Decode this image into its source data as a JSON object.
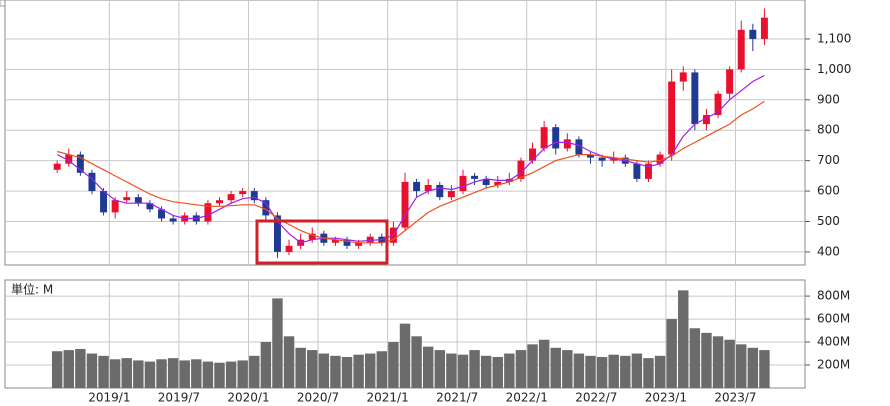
{
  "chart_data": [
    {
      "type": "candlestick",
      "x": [
        "2018/8",
        "2018/9",
        "2018/10",
        "2018/11",
        "2018/12",
        "2019/1",
        "2019/2",
        "2019/3",
        "2019/4",
        "2019/5",
        "2019/6",
        "2019/7",
        "2019/8",
        "2019/9",
        "2019/10",
        "2019/11",
        "2019/12",
        "2020/1",
        "2020/2",
        "2020/3",
        "2020/4",
        "2020/5",
        "2020/6",
        "2020/7",
        "2020/8",
        "2020/9",
        "2020/10",
        "2020/11",
        "2020/12",
        "2021/1",
        "2021/2",
        "2021/3",
        "2021/4",
        "2021/5",
        "2021/6",
        "2021/7",
        "2021/8",
        "2021/9",
        "2021/10",
        "2021/11",
        "2021/12",
        "2022/1",
        "2022/2",
        "2022/3",
        "2022/4",
        "2022/5",
        "2022/6",
        "2022/7",
        "2022/8",
        "2022/9",
        "2022/10",
        "2022/11",
        "2022/12",
        "2023/1",
        "2023/2",
        "2023/3",
        "2023/4",
        "2023/5",
        "2023/6",
        "2023/7",
        "2023/8",
        "2023/9"
      ],
      "open": [
        670,
        690,
        720,
        660,
        600,
        530,
        570,
        580,
        560,
        540,
        510,
        500,
        520,
        500,
        560,
        570,
        590,
        600,
        570,
        520,
        400,
        420,
        440,
        460,
        430,
        440,
        420,
        430,
        450,
        430,
        480,
        630,
        600,
        620,
        580,
        600,
        650,
        640,
        620,
        630,
        640,
        700,
        740,
        810,
        740,
        770,
        720,
        710,
        700,
        710,
        690,
        640,
        690,
        720,
        960,
        990,
        820,
        850,
        920,
        1000,
        1130,
        1100
      ],
      "high": [
        700,
        740,
        730,
        670,
        610,
        580,
        600,
        590,
        570,
        550,
        520,
        530,
        530,
        570,
        580,
        600,
        610,
        610,
        580,
        530,
        440,
        460,
        480,
        470,
        450,
        450,
        440,
        460,
        460,
        500,
        660,
        640,
        640,
        630,
        620,
        670,
        660,
        650,
        650,
        660,
        710,
        760,
        830,
        820,
        790,
        780,
        730,
        720,
        730,
        720,
        700,
        700,
        730,
        1000,
        1010,
        1000,
        870,
        930,
        1010,
        1160,
        1150,
        1200
      ],
      "low": [
        660,
        680,
        650,
        590,
        520,
        510,
        560,
        550,
        530,
        500,
        490,
        490,
        490,
        490,
        550,
        560,
        580,
        560,
        500,
        380,
        390,
        410,
        430,
        420,
        420,
        410,
        410,
        420,
        420,
        420,
        470,
        580,
        590,
        570,
        570,
        590,
        620,
        610,
        610,
        620,
        630,
        690,
        730,
        720,
        730,
        710,
        690,
        680,
        690,
        680,
        630,
        630,
        680,
        700,
        930,
        800,
        800,
        840,
        900,
        990,
        1060,
        1080
      ],
      "close": [
        690,
        720,
        660,
        600,
        530,
        570,
        580,
        560,
        540,
        510,
        500,
        520,
        500,
        560,
        570,
        590,
        600,
        570,
        520,
        400,
        420,
        440,
        460,
        430,
        440,
        420,
        430,
        450,
        430,
        480,
        630,
        600,
        620,
        580,
        600,
        650,
        640,
        620,
        630,
        640,
        700,
        740,
        810,
        740,
        770,
        720,
        710,
        700,
        710,
        690,
        640,
        690,
        720,
        960,
        990,
        820,
        850,
        920,
        1000,
        1130,
        1100,
        1170
      ],
      "up_color": "#e8102e",
      "down_color": "#1f3a93",
      "lines": [
        {
          "color": "#a020f0",
          "values": [
            720,
            700,
            670,
            640,
            600,
            570,
            560,
            560,
            560,
            540,
            520,
            510,
            510,
            520,
            540,
            560,
            575,
            580,
            560,
            500,
            460,
            430,
            440,
            445,
            445,
            440,
            435,
            438,
            440,
            455,
            520,
            580,
            600,
            610,
            605,
            615,
            630,
            640,
            635,
            635,
            660,
            700,
            740,
            760,
            760,
            750,
            730,
            715,
            705,
            700,
            690,
            680,
            690,
            720,
            780,
            820,
            840,
            860,
            900,
            930,
            960,
            980
          ]
        },
        {
          "color": "#f05020",
          "values": [
            730,
            720,
            710,
            690,
            670,
            650,
            630,
            610,
            590,
            575,
            565,
            560,
            555,
            550,
            550,
            552,
            555,
            555,
            540,
            510,
            490,
            470,
            455,
            445,
            440,
            435,
            430,
            430,
            430,
            440,
            470,
            500,
            530,
            550,
            565,
            580,
            595,
            610,
            620,
            630,
            645,
            660,
            680,
            700,
            710,
            720,
            720,
            715,
            710,
            705,
            700,
            695,
            700,
            715,
            740,
            760,
            780,
            800,
            820,
            850,
            870,
            895
          ]
        }
      ],
      "xlim": [
        "2018/4",
        "2024/1"
      ],
      "xticks": [
        "2019/1",
        "2019/7",
        "2020/1",
        "2020/7",
        "2021/1",
        "2021/7",
        "2022/1",
        "2022/7",
        "2023/1",
        "2023/7"
      ],
      "ylim": [
        357,
        1228
      ],
      "yticks": [
        400,
        500,
        600,
        700,
        800,
        900,
        {
          "value": 1000,
          "label": "1,000"
        },
        {
          "value": 1100,
          "label": "1,100"
        }
      ],
      "grid": true
    },
    {
      "type": "bar",
      "title": "単位: M",
      "x": [
        "2018/8",
        "2018/9",
        "2018/10",
        "2018/11",
        "2018/12",
        "2019/1",
        "2019/2",
        "2019/3",
        "2019/4",
        "2019/5",
        "2019/6",
        "2019/7",
        "2019/8",
        "2019/9",
        "2019/10",
        "2019/11",
        "2019/12",
        "2020/1",
        "2020/2",
        "2020/3",
        "2020/4",
        "2020/5",
        "2020/6",
        "2020/7",
        "2020/8",
        "2020/9",
        "2020/10",
        "2020/11",
        "2020/12",
        "2021/1",
        "2021/2",
        "2021/3",
        "2021/4",
        "2021/5",
        "2021/6",
        "2021/7",
        "2021/8",
        "2021/9",
        "2021/10",
        "2021/11",
        "2021/12",
        "2022/1",
        "2022/2",
        "2022/3",
        "2022/4",
        "2022/5",
        "2022/6",
        "2022/7",
        "2022/8",
        "2022/9",
        "2022/10",
        "2022/11",
        "2022/12",
        "2023/1",
        "2023/2",
        "2023/3",
        "2023/4",
        "2023/5",
        "2023/6",
        "2023/7",
        "2023/8",
        "2023/9"
      ],
      "values": [
        320,
        330,
        340,
        300,
        280,
        250,
        260,
        240,
        230,
        250,
        260,
        240,
        250,
        230,
        220,
        230,
        240,
        280,
        400,
        780,
        450,
        350,
        330,
        300,
        280,
        270,
        290,
        300,
        320,
        400,
        560,
        450,
        360,
        330,
        300,
        290,
        330,
        280,
        270,
        300,
        330,
        380,
        420,
        350,
        330,
        300,
        280,
        270,
        290,
        280,
        300,
        260,
        280,
        600,
        850,
        520,
        480,
        450,
        420,
        380,
        350,
        330
      ],
      "color": "#6b6b6b",
      "xlim": [
        "2018/4",
        "2024/1"
      ],
      "xticks": [
        "2019/1",
        "2019/7",
        "2020/1",
        "2020/7",
        "2021/1",
        "2021/7",
        "2022/1",
        "2022/7",
        "2023/1",
        "2023/7"
      ],
      "ylim": [
        0,
        940
      ],
      "yticks": [
        {
          "value": 200,
          "label": "200M"
        },
        {
          "value": 400,
          "label": "400M"
        },
        {
          "value": 600,
          "label": "600M"
        },
        {
          "value": 800,
          "label": "800M"
        }
      ],
      "grid": true
    }
  ]
}
